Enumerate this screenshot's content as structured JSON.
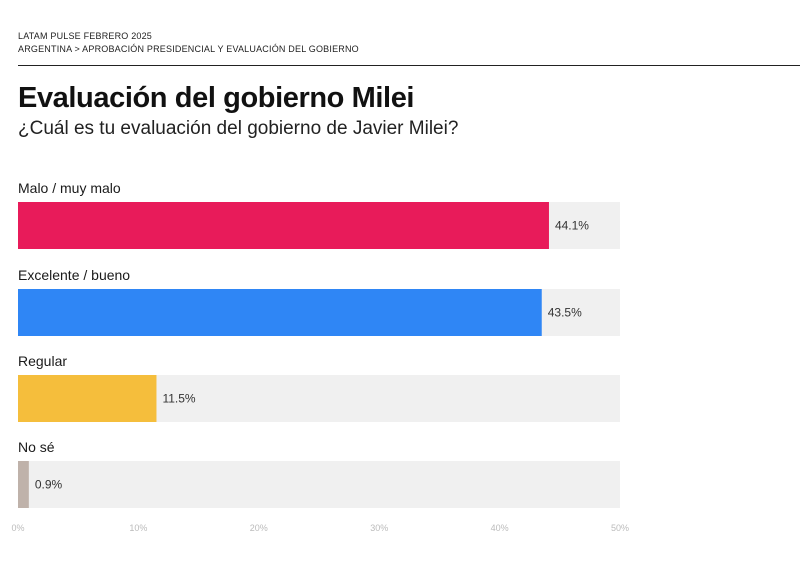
{
  "header": {
    "line1": "LATAM PULSE  FEBRERO 2025",
    "line2": "ARGENTINA > APROBACIÓN PRESIDENCIAL Y EVALUACIÓN DEL GOBIERNO"
  },
  "chart_data": {
    "type": "bar",
    "orientation": "horizontal",
    "title": "Evaluación del gobierno Milei",
    "subtitle": "¿Cuál es tu evaluación del gobierno de Javier Milei?",
    "categories": [
      "Malo / muy malo",
      "Excelente / bueno",
      "Regular",
      "No sé"
    ],
    "values": [
      44.1,
      43.5,
      11.5,
      0.9
    ],
    "value_labels": [
      "44.1%",
      "43.5%",
      "11.5%",
      "0.9%"
    ],
    "colors": [
      "#e81b5a",
      "#2f86f5",
      "#f5be3c",
      "#bfb2aa"
    ],
    "track_color": "#f0f0f0",
    "xlim": [
      0,
      50
    ],
    "x_ticks": [
      0,
      10,
      20,
      30,
      40,
      50
    ],
    "x_tick_labels": [
      "0%",
      "10%",
      "20%",
      "30%",
      "40%",
      "50%"
    ],
    "grid": false
  }
}
